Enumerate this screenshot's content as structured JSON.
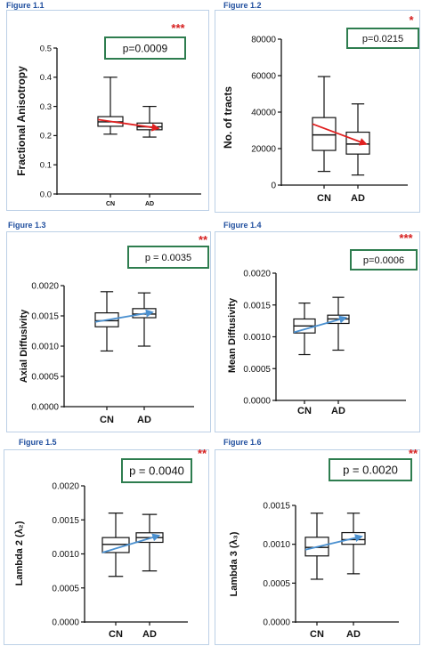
{
  "colors": {
    "pbox_border": "#2e7d4f",
    "star": "#d62020",
    "decline_arrow": "#e02020",
    "rise_arrow": "#4a90d0",
    "label": "#1f4e9e"
  },
  "chart_data": [
    {
      "type": "box",
      "figure_label": "Figure 1.1",
      "ylabel": "Fractional Anisotropy",
      "categories": [
        "CN",
        "AD"
      ],
      "ylim": [
        0,
        0.5
      ],
      "yticks": [
        "0.0",
        "0.1",
        "0.2",
        "0.3",
        "0.4",
        "0.5"
      ],
      "boxes": [
        {
          "category": "CN",
          "min": 0.205,
          "q1": 0.232,
          "median": 0.247,
          "q3": 0.265,
          "max": 0.4
        },
        {
          "category": "AD",
          "min": 0.195,
          "q1": 0.22,
          "median": 0.23,
          "q3": 0.243,
          "max": 0.3
        }
      ],
      "trend": {
        "from": 0.255,
        "to": 0.225,
        "direction": "decrease"
      },
      "p_value": "p=0.0009",
      "significance": "***",
      "grid": false
    },
    {
      "type": "box",
      "figure_label": "Figure 1.2",
      "ylabel": "No. of tracts",
      "categories": [
        "CN",
        "AD"
      ],
      "ylim": [
        0,
        80000
      ],
      "yticks": [
        "0",
        "20000",
        "40000",
        "60000",
        "80000"
      ],
      "boxes": [
        {
          "category": "CN",
          "min": 7500,
          "q1": 19000,
          "median": 27500,
          "q3": 37000,
          "max": 59500
        },
        {
          "category": "AD",
          "min": 5500,
          "q1": 17000,
          "median": 22500,
          "q3": 29000,
          "max": 44500
        }
      ],
      "trend": {
        "from": 33500,
        "to": 22500,
        "direction": "decrease"
      },
      "p_value": "p=0.0215",
      "significance": "*",
      "grid": false
    },
    {
      "type": "box",
      "figure_label": "Figure 1.3",
      "ylabel": "Axial Diffusivity",
      "categories": [
        "CN",
        "AD"
      ],
      "ylim": [
        0,
        0.002
      ],
      "yticks": [
        "0.0000",
        "0.0005",
        "0.0010",
        "0.0015",
        "0.0020"
      ],
      "boxes": [
        {
          "category": "CN",
          "min": 0.00092,
          "q1": 0.00132,
          "median": 0.00142,
          "q3": 0.00155,
          "max": 0.0019
        },
        {
          "category": "AD",
          "min": 0.001,
          "q1": 0.00147,
          "median": 0.00153,
          "q3": 0.00162,
          "max": 0.00188
        }
      ],
      "trend": {
        "from": 0.0014,
        "to": 0.00156,
        "direction": "increase"
      },
      "p_value": "p = 0.0035",
      "significance": "**",
      "grid": false
    },
    {
      "type": "box",
      "figure_label": "Figure 1.4",
      "ylabel": "Mean Diffusivity",
      "categories": [
        "CN",
        "AD"
      ],
      "ylim": [
        0,
        0.002
      ],
      "yticks": [
        "0.0000",
        "0.0005",
        "0.0010",
        "0.0015",
        "0.0020"
      ],
      "boxes": [
        {
          "category": "CN",
          "min": 0.00072,
          "q1": 0.00106,
          "median": 0.00117,
          "q3": 0.00128,
          "max": 0.00153
        },
        {
          "category": "AD",
          "min": 0.00079,
          "q1": 0.00121,
          "median": 0.00128,
          "q3": 0.00134,
          "max": 0.00162
        }
      ],
      "trend": {
        "from": 0.00107,
        "to": 0.0013,
        "direction": "increase"
      },
      "p_value": "p=0.0006",
      "significance": "***",
      "grid": false
    },
    {
      "type": "box",
      "figure_label": "Figure 1.5",
      "ylabel": "Lambda 2 (λ₂)",
      "categories": [
        "CN",
        "AD"
      ],
      "ylim": [
        0,
        0.002
      ],
      "yticks": [
        "0.0000",
        "0.0005",
        "0.0010",
        "0.0015",
        "0.0020"
      ],
      "boxes": [
        {
          "category": "CN",
          "min": 0.00067,
          "q1": 0.00102,
          "median": 0.00114,
          "q3": 0.00124,
          "max": 0.0016
        },
        {
          "category": "AD",
          "min": 0.00075,
          "q1": 0.00117,
          "median": 0.00124,
          "q3": 0.00131,
          "max": 0.00158
        }
      ],
      "trend": {
        "from": 0.00102,
        "to": 0.00127,
        "direction": "increase"
      },
      "p_value": "p = 0.0040",
      "significance": "**",
      "grid": false
    },
    {
      "type": "box",
      "figure_label": "Figure 1.6",
      "ylabel": "Lambda 3 (λ₃)",
      "categories": [
        "CN",
        "AD"
      ],
      "ylim": [
        0,
        0.0015
      ],
      "yticks": [
        "0.0000",
        "0.0005",
        "0.0010",
        "0.0015"
      ],
      "boxes": [
        {
          "category": "CN",
          "min": 0.00055,
          "q1": 0.00085,
          "median": 0.00096,
          "q3": 0.00109,
          "max": 0.0014
        },
        {
          "category": "AD",
          "min": 0.00062,
          "q1": 0.001,
          "median": 0.00106,
          "q3": 0.00115,
          "max": 0.0014
        }
      ],
      "trend": {
        "from": 0.00093,
        "to": 0.0011,
        "direction": "increase"
      },
      "p_value": "p = 0.0020",
      "significance": "**",
      "grid": false
    }
  ]
}
